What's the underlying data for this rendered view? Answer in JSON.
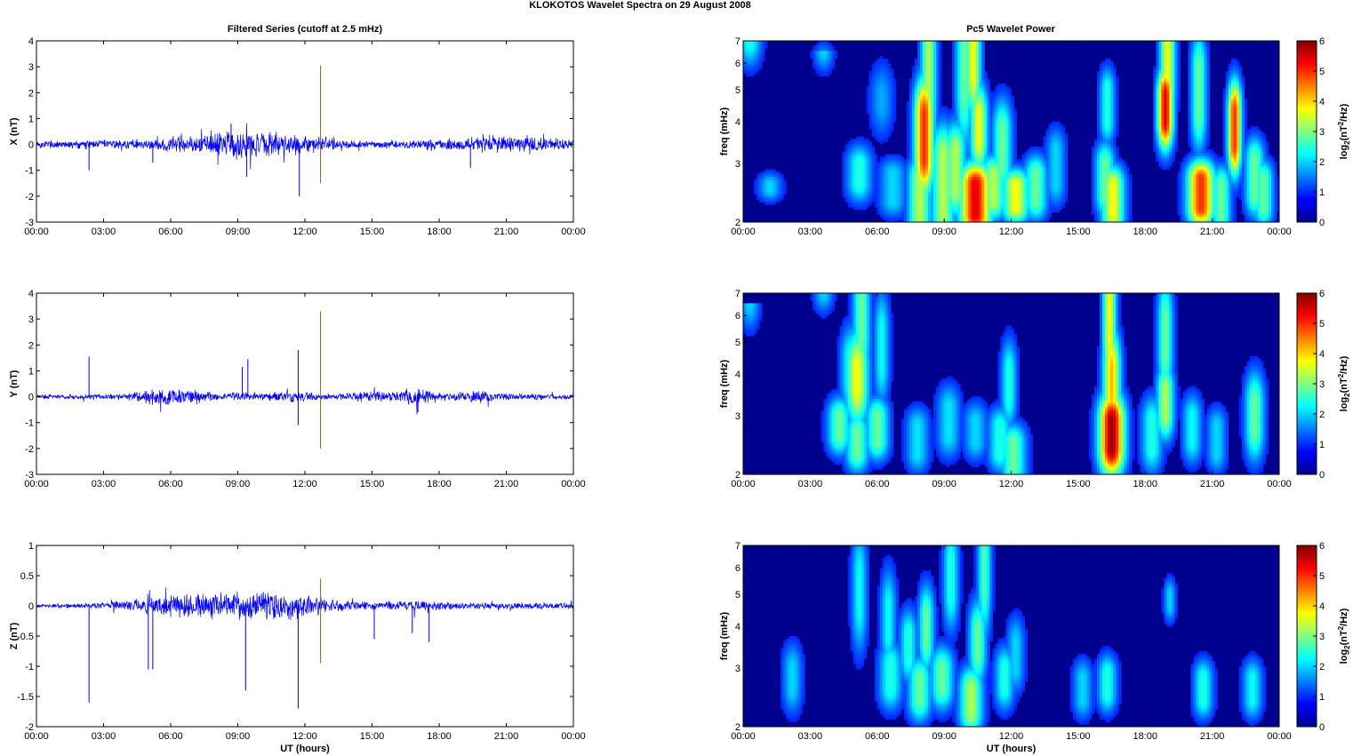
{
  "figure": {
    "title": "KLOKOTOS Wavelet Spectra on 29 August    2008",
    "left_column_title": "Filtered Series (cutoff at 2.5 mHz)",
    "right_column_title": "Pc5 Wavelet Power"
  },
  "time_ticks": [
    "00:00",
    "03:00",
    "06:00",
    "09:00",
    "12:00",
    "15:00",
    "18:00",
    "21:00",
    "00:00"
  ],
  "xlabel": "UT (hours)",
  "colorbar": {
    "ticks": [
      "0",
      "1",
      "2",
      "3",
      "4",
      "5",
      "6"
    ],
    "label_prefix": "log",
    "label_sub": "2",
    "label_mid": "(nT",
    "label_sup": "2",
    "label_suffix": "/Hz)"
  },
  "spectro_yticks": [
    "2",
    "3",
    "4",
    "5",
    "6",
    "7"
  ],
  "spectro_ylabel": "freq (mHz)",
  "colors": {
    "trace": "#0000ff",
    "spike": "#8b5a2b",
    "background": "#00008f"
  },
  "chart_data": [
    {
      "type": "line",
      "ylabel": "X (nT)",
      "yticks": [
        "-3",
        "-2",
        "-1",
        "0",
        "1",
        "2",
        "3",
        "4"
      ],
      "ylim": [
        -3,
        4
      ],
      "xlim_hours": [
        0,
        24
      ],
      "noise_profile": [
        [
          0,
          0.15
        ],
        [
          5,
          0.18
        ],
        [
          7,
          0.35
        ],
        [
          8.5,
          0.55
        ],
        [
          10.5,
          0.45
        ],
        [
          12.5,
          0.3
        ],
        [
          15,
          0.12
        ],
        [
          17,
          0.15
        ],
        [
          19,
          0.25
        ],
        [
          20,
          0.35
        ],
        [
          24,
          0.2
        ]
      ],
      "spikes": [
        [
          2.35,
          -1.0
        ],
        [
          8.7,
          0.8
        ],
        [
          9.4,
          -1.25
        ],
        [
          11.75,
          -2.0
        ],
        [
          12.7,
          3.05
        ],
        [
          12.7,
          -1.5
        ],
        [
          19.4,
          -0.9
        ],
        [
          5.2,
          -0.7
        ]
      ],
      "grid": false
    },
    {
      "type": "line",
      "ylabel": "Y (nT)",
      "yticks": [
        "-3",
        "-2",
        "-1",
        "0",
        "1",
        "2",
        "3",
        "4"
      ],
      "ylim": [
        -3,
        4
      ],
      "xlim_hours": [
        0,
        24
      ],
      "noise_profile": [
        [
          0,
          0.08
        ],
        [
          4,
          0.1
        ],
        [
          5.5,
          0.35
        ],
        [
          7,
          0.25
        ],
        [
          8,
          0.15
        ],
        [
          10,
          0.15
        ],
        [
          11.5,
          0.2
        ],
        [
          13,
          0.1
        ],
        [
          15.5,
          0.2
        ],
        [
          17,
          0.3
        ],
        [
          18.5,
          0.12
        ],
        [
          19.5,
          0.25
        ],
        [
          21,
          0.12
        ],
        [
          24,
          0.1
        ]
      ],
      "spikes": [
        [
          2.35,
          1.55
        ],
        [
          9.2,
          1.15
        ],
        [
          9.45,
          1.45
        ],
        [
          11.7,
          1.8
        ],
        [
          11.7,
          -1.1
        ],
        [
          12.7,
          3.3
        ],
        [
          12.7,
          -2.0
        ],
        [
          17.05,
          -0.6
        ]
      ],
      "grid": false
    },
    {
      "type": "line",
      "ylabel": "Z (nT)",
      "yticks": [
        "-2",
        "-1.5",
        "-1",
        "-0.5",
        "0",
        "0.5",
        "1"
      ],
      "ylim": [
        -2,
        1
      ],
      "xlim_hours": [
        0,
        24
      ],
      "noise_profile": [
        [
          0,
          0.03
        ],
        [
          2,
          0.04
        ],
        [
          4,
          0.08
        ],
        [
          5.5,
          0.18
        ],
        [
          7,
          0.2
        ],
        [
          9,
          0.22
        ],
        [
          10.5,
          0.25
        ],
        [
          12,
          0.2
        ],
        [
          13,
          0.1
        ],
        [
          15,
          0.06
        ],
        [
          17,
          0.08
        ],
        [
          19,
          0.05
        ],
        [
          24,
          0.05
        ]
      ],
      "spikes": [
        [
          2.35,
          -1.6
        ],
        [
          5.0,
          -1.05
        ],
        [
          5.2,
          -1.05
        ],
        [
          9.35,
          -1.4
        ],
        [
          11.7,
          -1.7
        ],
        [
          12.7,
          0.45
        ],
        [
          12.7,
          -0.95
        ],
        [
          15.1,
          -0.55
        ],
        [
          16.8,
          -0.45
        ],
        [
          17.55,
          -0.6
        ]
      ],
      "grid": false
    },
    {
      "type": "heatmap",
      "title": "Pc5 Wavelet Power",
      "ylabel": "freq (mHz)",
      "ylim_mHz": [
        2,
        7
      ],
      "yscale": "log",
      "clim": [
        0,
        6
      ],
      "colormap": "jet",
      "blobs": [
        [
          0.3,
          7,
          5.5,
          0.12,
          0.4,
          2.0
        ],
        [
          1.2,
          2.5,
          2.6,
          0.12,
          0.18,
          1.5
        ],
        [
          3.6,
          6.5,
          6.0,
          0.1,
          0.3,
          1.5
        ],
        [
          5.2,
          2.6,
          3.0,
          0.13,
          0.3,
          2.0
        ],
        [
          6.7,
          2.3,
          2.8,
          0.14,
          0.25,
          1.5
        ],
        [
          6.2,
          4.5,
          4.8,
          0.12,
          0.5,
          1.2
        ],
        [
          7.9,
          2.0,
          2.7,
          0.12,
          0.35,
          3.0
        ],
        [
          8.1,
          3.1,
          4.2,
          0.1,
          0.6,
          5.0
        ],
        [
          8.3,
          4.8,
          6.5,
          0.08,
          1.2,
          3.0
        ],
        [
          8.95,
          2.1,
          3.2,
          0.12,
          0.5,
          3.0
        ],
        [
          9.5,
          2.5,
          3.3,
          0.11,
          0.45,
          3.0
        ],
        [
          9.9,
          5.0,
          6.8,
          0.09,
          1.0,
          2.5
        ],
        [
          10.4,
          2.1,
          2.6,
          0.16,
          0.35,
          5.5
        ],
        [
          10.55,
          3.5,
          4.2,
          0.09,
          0.5,
          3.5
        ],
        [
          10.3,
          5.5,
          7.0,
          0.08,
          0.7,
          3.5
        ],
        [
          11.2,
          2.3,
          2.8,
          0.13,
          0.3,
          3.0
        ],
        [
          11.6,
          3.0,
          3.8,
          0.1,
          0.5,
          2.5
        ],
        [
          12.2,
          2.2,
          2.6,
          0.14,
          0.25,
          3.5
        ],
        [
          13.1,
          2.3,
          2.8,
          0.12,
          0.3,
          2.5
        ],
        [
          14.0,
          2.6,
          3.3,
          0.1,
          0.35,
          1.5
        ],
        [
          16.2,
          2.4,
          3.0,
          0.1,
          0.35,
          2.5
        ],
        [
          16.55,
          2.1,
          2.6,
          0.12,
          0.3,
          3.5
        ],
        [
          16.3,
          4.0,
          5.0,
          0.08,
          0.35,
          2.0
        ],
        [
          18.9,
          4.0,
          4.8,
          0.08,
          0.45,
          5.5
        ],
        [
          19.0,
          5.3,
          6.8,
          0.08,
          0.7,
          3.5
        ],
        [
          20.4,
          4.2,
          5.8,
          0.08,
          0.6,
          2.5
        ],
        [
          20.5,
          2.2,
          2.7,
          0.14,
          0.3,
          5.0
        ],
        [
          21.4,
          2.1,
          2.6,
          0.1,
          0.3,
          2.5
        ],
        [
          22.0,
          3.4,
          4.3,
          0.07,
          0.5,
          5.0
        ],
        [
          22.9,
          2.4,
          3.1,
          0.1,
          0.35,
          2.5
        ],
        [
          23.3,
          2.2,
          2.7,
          0.1,
          0.3,
          2.5
        ]
      ]
    },
    {
      "type": "heatmap",
      "ylabel": "freq (mHz)",
      "ylim_mHz": [
        2,
        7
      ],
      "yscale": "log",
      "clim": [
        0,
        6
      ],
      "colormap": "jet",
      "blobs": [
        [
          0.3,
          6.5,
          5.0,
          0.1,
          0.4,
          1.5
        ],
        [
          3.6,
          7.0,
          7.0,
          0.1,
          0.3,
          1.5
        ],
        [
          4.3,
          2.6,
          3.0,
          0.12,
          0.3,
          2.5
        ],
        [
          4.8,
          3.8,
          4.5,
          0.1,
          0.5,
          2.0
        ],
        [
          5.1,
          3.6,
          4.2,
          0.12,
          0.6,
          3.5
        ],
        [
          5.3,
          5.2,
          6.5,
          0.09,
          0.8,
          2.5
        ],
        [
          5.1,
          2.3,
          2.7,
          0.12,
          0.3,
          2.5
        ],
        [
          6.0,
          2.5,
          3.0,
          0.12,
          0.3,
          2.5
        ],
        [
          6.2,
          4.2,
          5.5,
          0.08,
          0.6,
          1.8
        ],
        [
          7.8,
          2.3,
          2.8,
          0.12,
          0.3,
          1.6
        ],
        [
          9.2,
          2.6,
          3.2,
          0.12,
          0.35,
          1.6
        ],
        [
          10.4,
          2.5,
          2.9,
          0.12,
          0.3,
          1.5
        ],
        [
          11.5,
          2.3,
          2.8,
          0.12,
          0.3,
          2.0
        ],
        [
          12.1,
          2.1,
          2.5,
          0.13,
          0.3,
          2.5
        ],
        [
          11.9,
          3.4,
          4.1,
          0.08,
          0.5,
          2.0
        ],
        [
          16.5,
          2.4,
          2.9,
          0.13,
          0.45,
          6.0
        ],
        [
          16.5,
          3.3,
          4.2,
          0.09,
          0.6,
          4.0
        ],
        [
          16.4,
          5.0,
          6.8,
          0.07,
          0.8,
          3.5
        ],
        [
          18.3,
          2.4,
          2.9,
          0.11,
          0.4,
          2.0
        ],
        [
          18.9,
          3.0,
          3.6,
          0.09,
          0.4,
          3.0
        ],
        [
          18.9,
          4.6,
          5.8,
          0.08,
          0.7,
          2.5
        ],
        [
          20.1,
          2.5,
          3.0,
          0.1,
          0.35,
          1.8
        ],
        [
          21.2,
          2.3,
          2.8,
          0.1,
          0.3,
          1.5
        ],
        [
          22.9,
          2.7,
          3.3,
          0.1,
          0.5,
          2.5
        ]
      ]
    },
    {
      "type": "heatmap",
      "ylabel": "freq (mHz)",
      "ylim_mHz": [
        2,
        7
      ],
      "yscale": "log",
      "clim": [
        0,
        6
      ],
      "colormap": "jet",
      "blobs": [
        [
          2.2,
          2.6,
          3.0,
          0.1,
          0.4,
          1.5
        ],
        [
          5.2,
          4.5,
          5.8,
          0.08,
          0.7,
          1.8
        ],
        [
          6.5,
          3.8,
          4.6,
          0.08,
          0.6,
          1.8
        ],
        [
          6.6,
          2.6,
          3.1,
          0.12,
          0.35,
          2.0
        ],
        [
          7.4,
          3.2,
          3.8,
          0.09,
          0.4,
          2.0
        ],
        [
          7.9,
          2.4,
          2.8,
          0.12,
          0.35,
          2.5
        ],
        [
          8.2,
          3.6,
          4.3,
          0.08,
          0.5,
          2.5
        ],
        [
          8.9,
          2.6,
          3.0,
          0.12,
          0.35,
          2.5
        ],
        [
          9.3,
          5.0,
          6.3,
          0.08,
          0.6,
          2.0
        ],
        [
          10.2,
          2.2,
          2.6,
          0.12,
          0.35,
          3.0
        ],
        [
          10.5,
          3.3,
          3.9,
          0.09,
          0.5,
          2.5
        ],
        [
          10.8,
          5.2,
          6.8,
          0.07,
          0.8,
          2.3
        ],
        [
          11.7,
          2.6,
          3.0,
          0.1,
          0.35,
          2.0
        ],
        [
          12.2,
          3.0,
          3.6,
          0.09,
          0.4,
          1.5
        ],
        [
          15.2,
          2.4,
          2.8,
          0.1,
          0.3,
          1.5
        ],
        [
          16.3,
          2.5,
          2.9,
          0.1,
          0.3,
          2.0
        ],
        [
          19.1,
          4.6,
          5.0,
          0.06,
          0.25,
          1.5
        ],
        [
          20.6,
          2.4,
          2.8,
          0.1,
          0.3,
          2.0
        ],
        [
          22.8,
          2.4,
          2.8,
          0.1,
          0.3,
          1.8
        ]
      ]
    }
  ]
}
